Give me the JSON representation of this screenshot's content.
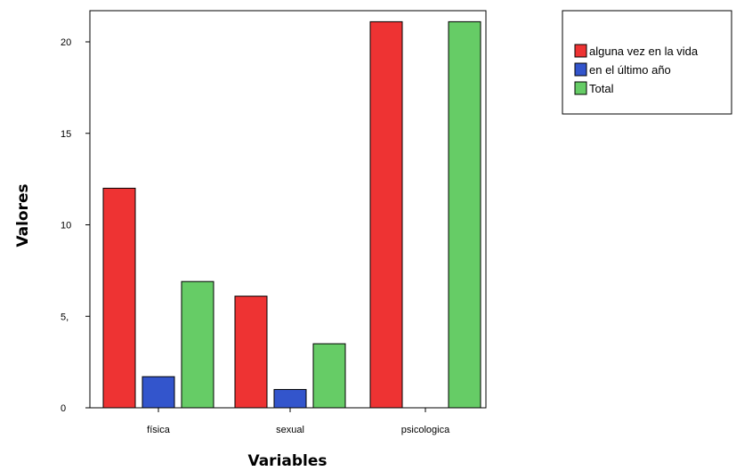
{
  "chart_data": {
    "type": "bar",
    "categories": [
      "física",
      "sexual",
      "psicologica"
    ],
    "series": [
      {
        "name": "alguna vez en la vida",
        "values": [
          12.0,
          6.1,
          21.1
        ],
        "color": "#ee3333"
      },
      {
        "name": "en el último año",
        "values": [
          1.7,
          1.0,
          0.0
        ],
        "color": "#3355cc"
      },
      {
        "name": "Total",
        "values": [
          6.9,
          3.5,
          21.1
        ],
        "color": "#66cc66"
      }
    ],
    "y_ticks": [
      0,
      5,
      10,
      15,
      20
    ],
    "y_tick_labels": [
      "0",
      "5,",
      "10",
      "15",
      "20"
    ],
    "ylim": [
      0,
      23.0
    ],
    "xlabel": "Variables",
    "ylabel": "Valores",
    "legend_position": "top-right",
    "grid": false
  }
}
